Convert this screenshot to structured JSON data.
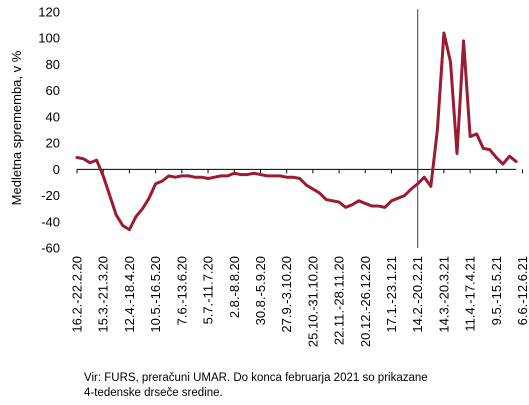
{
  "chart_data": {
    "type": "line",
    "ylabel": "Medletna sprememba, v %",
    "xlabel": "",
    "ylim": [
      -60,
      120
    ],
    "yticks": [
      -60,
      -40,
      -20,
      0,
      20,
      40,
      60,
      80,
      100,
      120
    ],
    "grid": false,
    "line_color": "#9b1b30",
    "marker_color": "#444444",
    "x_tick_labels": [
      "16.2.-22.2.20",
      "15.3.-21.3.20",
      "12.4.-18.4.20",
      "10.5.-16.5.20",
      "7.6.-13.6.20",
      "5.7.-11.7.20",
      "2.8.-8.8.20",
      "30.8.-5.9.20",
      "27.9.-3.10.20",
      "25.10.-31.10.20",
      "22.11.-28.11.20",
      "20.12.-26.12.20",
      "17.1.-23.1.21",
      "14.2.-20.2.21",
      "14.3.-20.3.21",
      "11.4.-17.4.21",
      "9.5.-15.5.21",
      "6.6.-12.6.21"
    ],
    "tick_every": 4,
    "vertical_marker_index": 52,
    "values": [
      9,
      8,
      5,
      7,
      -5,
      -20,
      -35,
      -43,
      -46,
      -36,
      -30,
      -22,
      -11,
      -9,
      -5,
      -6,
      -5,
      -5,
      -6,
      -6,
      -7,
      -6,
      -5,
      -5,
      -3,
      -4,
      -4,
      -3,
      -4,
      -5,
      -5,
      -5,
      -6,
      -6,
      -7,
      -12,
      -15,
      -18,
      -23,
      -24,
      -25,
      -29,
      -27,
      -24,
      -26,
      -28,
      -28,
      -29,
      -24,
      -22,
      -20,
      -15,
      -11,
      -6,
      -13,
      30,
      104,
      82,
      12,
      98,
      25,
      27,
      16,
      15,
      9,
      4,
      10,
      6
    ]
  },
  "footnote": {
    "line1": "Vir: FURS, preračuni UMAR. Do konca februarja 2021 so prikazane",
    "line2": "4-tedenske drseče sredine."
  }
}
